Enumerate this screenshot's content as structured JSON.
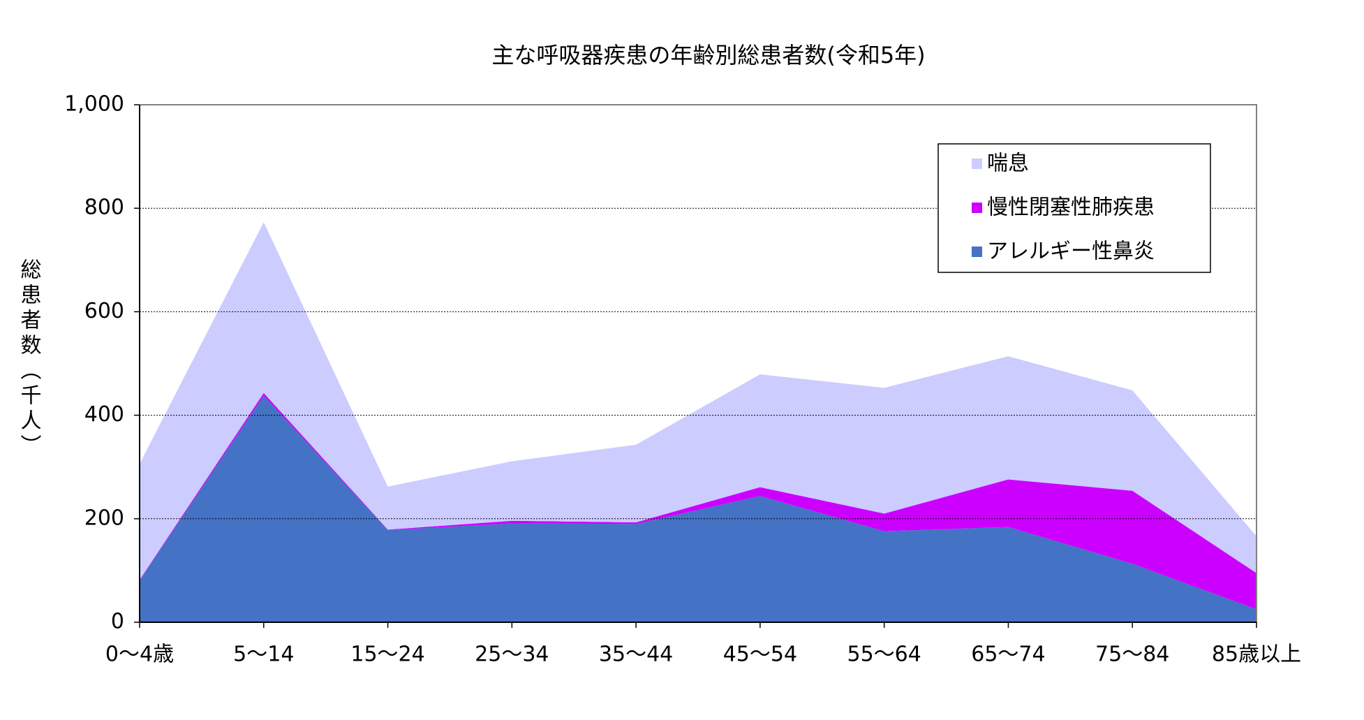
{
  "chart_data": {
    "type": "stacked-area",
    "title": "主な呼吸器疾患の年齢別総患者数(令和5年)",
    "y_label": "総患者数（千人）",
    "categories": [
      "0～4歳",
      "5～14",
      "15～24",
      "25～34",
      "35～44",
      "45～54",
      "55～64",
      "65～74",
      "75～84",
      "85歳以上"
    ],
    "series": [
      {
        "name": "喘息",
        "color": "#ccccff",
        "values": [
          224,
          330,
          83,
          115,
          150,
          218,
          243,
          238,
          194,
          71
        ]
      },
      {
        "name": "慢性閉塞性肺疾患",
        "color": "#cc00ff",
        "values": [
          1,
          5,
          1,
          5,
          3,
          17,
          34,
          92,
          141,
          70
        ]
      },
      {
        "name": "アレルギー性鼻炎",
        "color": "#4472c4",
        "values": [
          81,
          438,
          178,
          191,
          190,
          244,
          176,
          184,
          113,
          25
        ]
      }
    ],
    "ylim": [
      0,
      1000
    ],
    "yticks": [
      0,
      200,
      400,
      600,
      800,
      {
        "value": 1000,
        "label": "1,000"
      }
    ],
    "grid": true,
    "legend": "upper right"
  }
}
